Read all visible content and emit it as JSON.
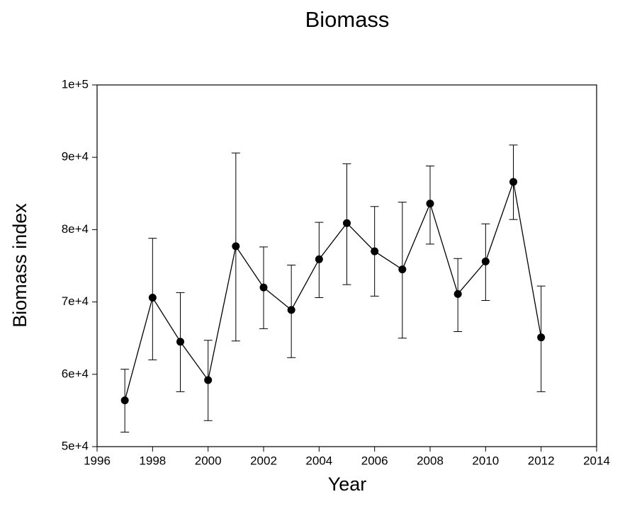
{
  "chart_data": {
    "type": "line",
    "title": "Biomass",
    "x_label": "Year",
    "y_label": "Biomass index",
    "x": [
      1997,
      1998,
      1999,
      2000,
      2001,
      2002,
      2003,
      2004,
      2005,
      2006,
      2007,
      2008,
      2009,
      2010,
      2011,
      2012
    ],
    "series": [
      {
        "color": "#000000",
        "values": [
          56400,
          70600,
          64500,
          59200,
          77700,
          72000,
          68900,
          75900,
          80900,
          77000,
          74500,
          83600,
          71100,
          75600,
          86600,
          65100
        ],
        "lower": [
          52000,
          62000,
          57600,
          53600,
          64600,
          66300,
          62300,
          70600,
          72400,
          70800,
          65000,
          78000,
          65900,
          70200,
          81400,
          57600
        ],
        "upper": [
          60700,
          78800,
          71300,
          64700,
          90600,
          77600,
          75100,
          81000,
          89100,
          83200,
          83800,
          88800,
          76000,
          80800,
          91700,
          72200
        ]
      }
    ],
    "xlim": [
      1996,
      2014
    ],
    "xticks": [
      1996,
      1998,
      2000,
      2002,
      2004,
      2006,
      2008,
      2010,
      2012,
      2014
    ],
    "ylim": [
      50000,
      100000
    ],
    "yticks": [
      {
        "value": 50000,
        "label": "5e+4"
      },
      {
        "value": 60000,
        "label": "6e+4"
      },
      {
        "value": 70000,
        "label": "7e+4"
      },
      {
        "value": 80000,
        "label": "8e+4"
      },
      {
        "value": 90000,
        "label": "9e+4"
      },
      {
        "value": 100000,
        "label": "1e+5"
      }
    ]
  }
}
